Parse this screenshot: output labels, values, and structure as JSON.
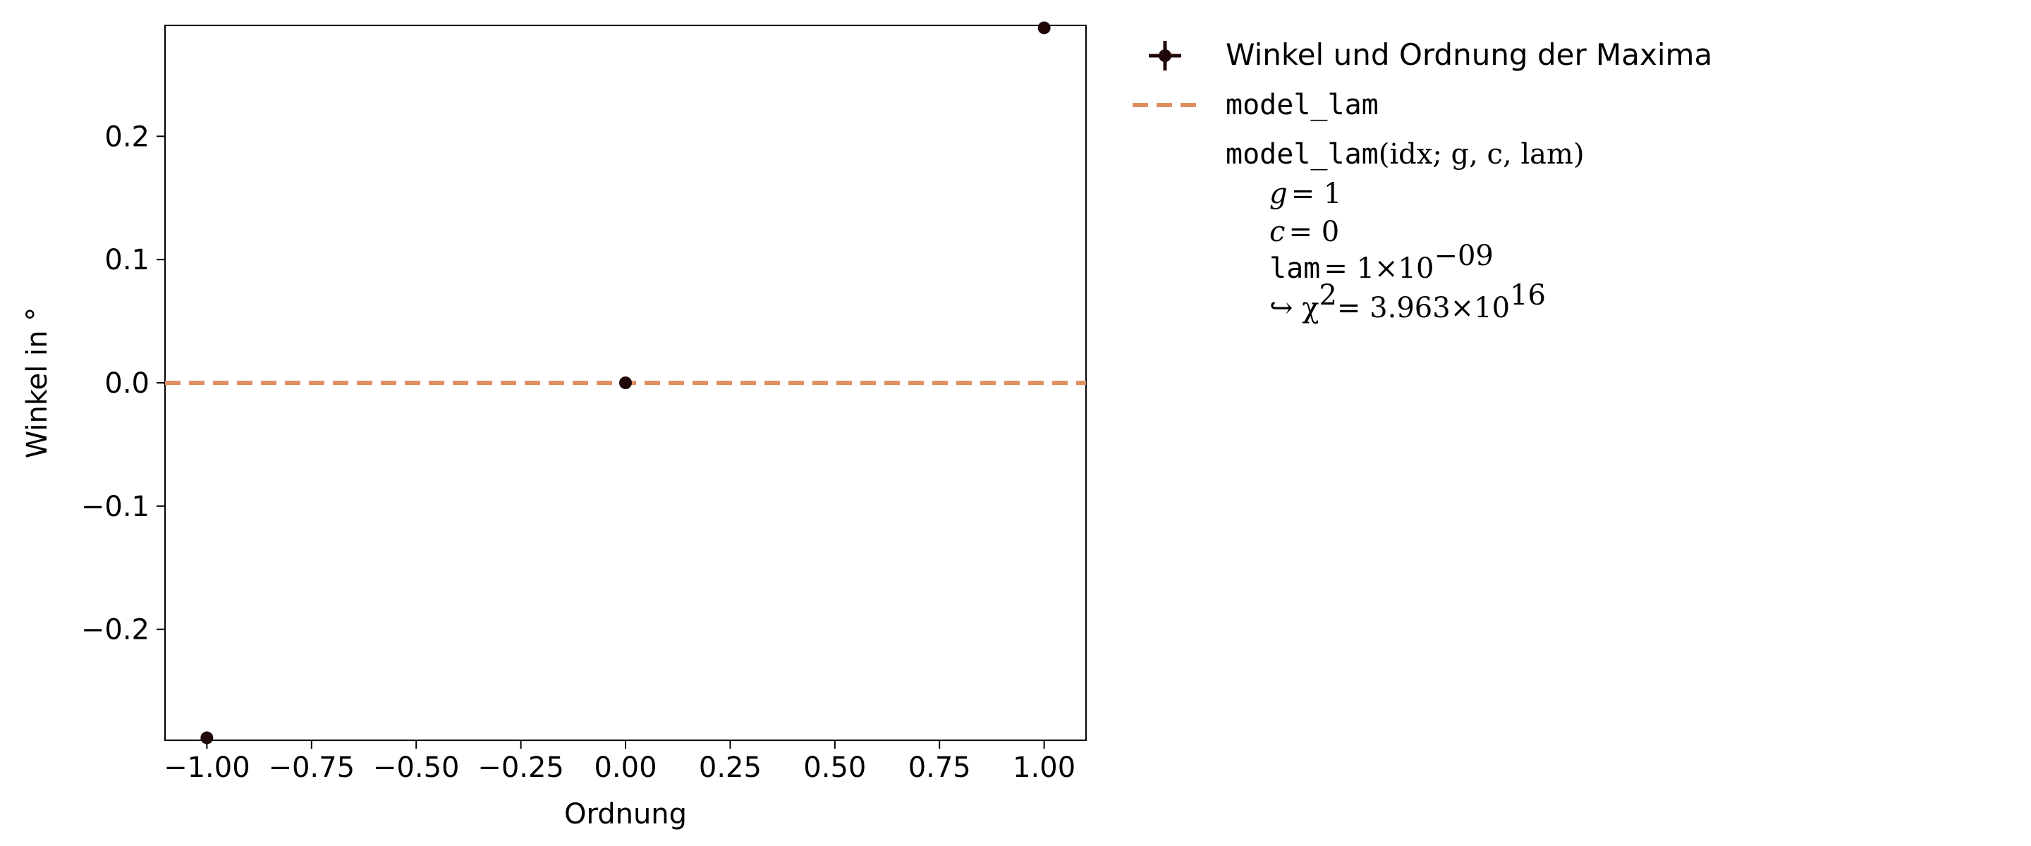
{
  "chart_data": {
    "type": "scatter",
    "xlabel": "Ordnung",
    "ylabel": "Winkel in °",
    "xlim": [
      -1.1,
      1.1
    ],
    "ylim": [
      -0.29,
      0.29
    ],
    "xticks": [
      -1.0,
      -0.75,
      -0.5,
      -0.25,
      0.0,
      0.25,
      0.5,
      0.75,
      1.0
    ],
    "xtick_labels": [
      "−1.00",
      "−0.75",
      "−0.50",
      "−0.25",
      "0.00",
      "0.25",
      "0.50",
      "0.75",
      "1.00"
    ],
    "yticks": [
      0.2,
      0.1,
      0.0,
      -0.1,
      -0.2
    ],
    "ytick_labels": [
      "0.2",
      "0.1",
      "0.0",
      "−0.1",
      "−0.2"
    ],
    "grid": false,
    "legend_placement": "outside-right-top",
    "series": [
      {
        "name": "Winkel und Ordnung der Maxima",
        "kind": "errorbar-points",
        "color": "#200808",
        "x": [
          -1.0,
          0.0,
          1.0
        ],
        "y": [
          -0.288,
          0.0,
          0.288
        ]
      },
      {
        "name": "model_lam",
        "kind": "line",
        "style": "dashed",
        "color": "#e09060",
        "x": [
          -1.1,
          1.1
        ],
        "y": [
          0.0,
          0.0
        ]
      }
    ],
    "fit_info": {
      "formula_name": "model_lam",
      "formula_args": "(idx; g, c, lam)",
      "params": [
        {
          "name": "g",
          "value": "= 1"
        },
        {
          "name": "c",
          "value": "= 0"
        },
        {
          "name": "lam",
          "value": "= 1×10"
        }
      ],
      "lam_exponent": "−09",
      "chi2_prefix": "↪ χ",
      "chi2_sup": "2",
      "chi2_value": "= 3.963×10",
      "chi2_exponent": "16"
    }
  }
}
